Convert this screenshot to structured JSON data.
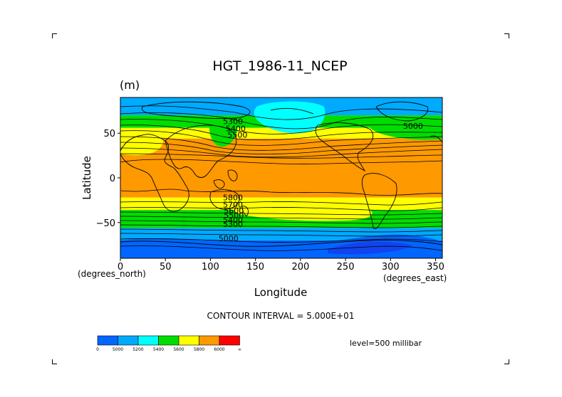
{
  "chart_data": {
    "type": "heatmap",
    "title": "HGT_1986-11_NCEP",
    "units": "(m)",
    "xlabel": "Longitude",
    "ylabel": "Latitude",
    "x_units": "(degrees_east)",
    "y_units": "(degrees_north)",
    "xlim": [
      0,
      357.5
    ],
    "ylim": [
      -90,
      90
    ],
    "x_ticks": [
      0,
      50,
      100,
      150,
      200,
      250,
      300,
      350
    ],
    "y_ticks": [
      50,
      0,
      -50
    ],
    "contour_interval_label": "CONTOUR INTERVAL = 5.000E+01",
    "level_label": "level=500 millibar",
    "contour_labels": [
      {
        "text": "5300",
        "lon": 125,
        "lat": 60
      },
      {
        "text": "5400",
        "lon": 128,
        "lat": 52
      },
      {
        "text": "5500",
        "lon": 130,
        "lat": 45
      },
      {
        "text": "5800",
        "lon": 125,
        "lat": -25
      },
      {
        "text": "5700",
        "lon": 125,
        "lat": -33
      },
      {
        "text": "5600",
        "lon": 126,
        "lat": -40
      },
      {
        "text": "5500",
        "lon": 126,
        "lat": -45
      },
      {
        "text": "5400",
        "lon": 125,
        "lat": -50
      },
      {
        "text": "5300",
        "lon": 125,
        "lat": -55
      },
      {
        "text": "5000",
        "lon": 120,
        "lat": -71
      },
      {
        "text": "5000",
        "lon": 325,
        "lat": 55
      }
    ],
    "colorbar": {
      "labels": [
        "0",
        "5000",
        "5200",
        "5400",
        "5600",
        "5800",
        "6000",
        "∞"
      ],
      "colors": [
        "#0066ff",
        "#00aaff",
        "#00ffff",
        "#00dd00",
        "#ffff00",
        "#ff9900",
        "#ff0000"
      ]
    },
    "bands_by_latitude": [
      {
        "lat_max": 90,
        "lat_min": 70,
        "color": "#00aaff"
      },
      {
        "lat_max": 70,
        "lat_min": 56,
        "color": "#00dd00"
      },
      {
        "lat_max": 56,
        "lat_min": 44,
        "color": "#ffff00"
      },
      {
        "lat_max": 44,
        "lat_min": -22,
        "color": "#ff9900"
      },
      {
        "lat_max": -22,
        "lat_min": -36,
        "color": "#ffff00"
      },
      {
        "lat_max": -36,
        "lat_min": -56,
        "color": "#00dd00"
      },
      {
        "lat_max": -56,
        "lat_min": -70,
        "color": "#00aaff"
      },
      {
        "lat_max": -70,
        "lat_min": -90,
        "color": "#0066ff"
      }
    ]
  }
}
